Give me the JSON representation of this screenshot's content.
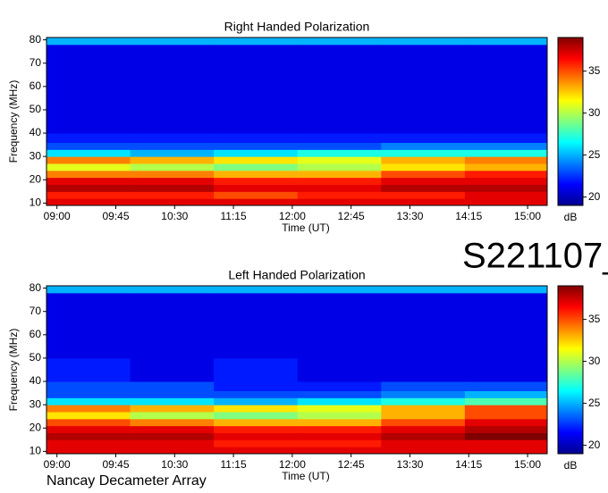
{
  "chart_data": [
    {
      "type": "heatmap",
      "title": "Right Handed Polarization",
      "xlabel": "Time (UT)",
      "ylabel": "Frequency (MHz)",
      "colorbar_label": "dB",
      "colormap": "jet",
      "xlim": [
        532,
        915
      ],
      "ylim": [
        9,
        81
      ],
      "clim": [
        19,
        39
      ],
      "xticks": [
        {
          "value": 540,
          "label": "09:00"
        },
        {
          "value": 585,
          "label": "09:45"
        },
        {
          "value": 630,
          "label": "10:30"
        },
        {
          "value": 675,
          "label": "11:15"
        },
        {
          "value": 720,
          "label": "12:00"
        },
        {
          "value": 765,
          "label": "12:45"
        },
        {
          "value": 810,
          "label": "13:30"
        },
        {
          "value": 855,
          "label": "14:15"
        },
        {
          "value": 900,
          "label": "15:00"
        }
      ],
      "yticks": [
        10,
        20,
        30,
        40,
        50,
        60,
        70,
        80
      ],
      "cticks": [
        20,
        25,
        30,
        35
      ],
      "time_bins": [
        532,
        596,
        660,
        724,
        788,
        852,
        915
      ],
      "freq_bins": [
        9,
        12,
        15,
        18,
        21,
        24,
        27,
        30,
        33,
        36,
        40,
        50,
        60,
        70,
        78,
        81
      ],
      "values": [
        [
          37,
          37,
          37,
          37,
          37,
          37
        ],
        [
          36,
          36,
          35,
          36,
          36,
          37
        ],
        [
          38,
          38,
          37,
          37,
          38,
          38
        ],
        [
          37,
          37,
          36,
          36,
          37,
          37
        ],
        [
          34,
          34,
          33,
          33,
          35,
          36
        ],
        [
          31,
          30,
          29,
          30,
          32,
          33
        ],
        [
          34,
          33,
          32,
          31,
          33,
          34
        ],
        [
          26,
          25,
          26,
          27,
          27,
          27
        ],
        [
          23,
          23,
          23,
          23,
          24,
          24
        ],
        [
          22,
          22,
          22,
          22,
          22,
          22
        ],
        [
          21,
          21,
          21,
          21,
          21,
          21
        ],
        [
          21,
          21,
          21,
          21,
          21,
          21
        ],
        [
          21,
          21,
          21,
          21,
          21,
          21
        ],
        [
          21,
          21,
          21,
          21,
          21,
          21
        ],
        [
          25,
          25,
          25,
          25,
          25,
          25
        ]
      ]
    },
    {
      "type": "heatmap",
      "title": "Left Handed Polarization",
      "xlabel": "Time (UT)",
      "ylabel": "Frequency (MHz)",
      "colorbar_label": "dB",
      "colormap": "jet",
      "xlim": [
        532,
        915
      ],
      "ylim": [
        9,
        81
      ],
      "clim": [
        19,
        39
      ],
      "xticks": [
        {
          "value": 540,
          "label": "09:00"
        },
        {
          "value": 585,
          "label": "09:45"
        },
        {
          "value": 630,
          "label": "10:30"
        },
        {
          "value": 675,
          "label": "11:15"
        },
        {
          "value": 720,
          "label": "12:00"
        },
        {
          "value": 765,
          "label": "12:45"
        },
        {
          "value": 810,
          "label": "13:30"
        },
        {
          "value": 855,
          "label": "14:15"
        },
        {
          "value": 900,
          "label": "15:00"
        }
      ],
      "yticks": [
        10,
        20,
        30,
        40,
        50,
        60,
        70,
        80
      ],
      "cticks": [
        20,
        25,
        30,
        35
      ],
      "time_bins": [
        532,
        596,
        660,
        724,
        788,
        852,
        915
      ],
      "freq_bins": [
        9,
        12,
        15,
        18,
        21,
        24,
        27,
        30,
        33,
        36,
        40,
        50,
        60,
        70,
        78,
        81
      ],
      "values": [
        [
          37,
          37,
          37,
          37,
          37,
          37
        ],
        [
          37,
          37,
          36,
          36,
          37,
          37
        ],
        [
          38,
          38,
          37,
          37,
          38,
          39
        ],
        [
          37,
          37,
          36,
          36,
          37,
          38
        ],
        [
          35,
          34,
          33,
          33,
          35,
          37
        ],
        [
          32,
          30,
          29,
          30,
          33,
          35
        ],
        [
          34,
          33,
          32,
          31,
          33,
          35
        ],
        [
          26,
          26,
          25,
          26,
          27,
          28
        ],
        [
          23,
          23,
          23,
          23,
          24,
          25
        ],
        [
          23,
          23,
          22,
          22,
          23,
          23
        ],
        [
          22,
          21,
          22,
          21,
          21,
          21
        ],
        [
          21,
          21,
          21,
          21,
          21,
          21
        ],
        [
          21,
          21,
          21,
          21,
          21,
          21
        ],
        [
          21,
          21,
          21,
          21,
          21,
          21
        ],
        [
          25,
          25,
          25,
          25,
          25,
          25
        ]
      ]
    }
  ],
  "header": {
    "id": "S221107_"
  },
  "footer": {
    "text": "Nancay Decameter Array"
  }
}
